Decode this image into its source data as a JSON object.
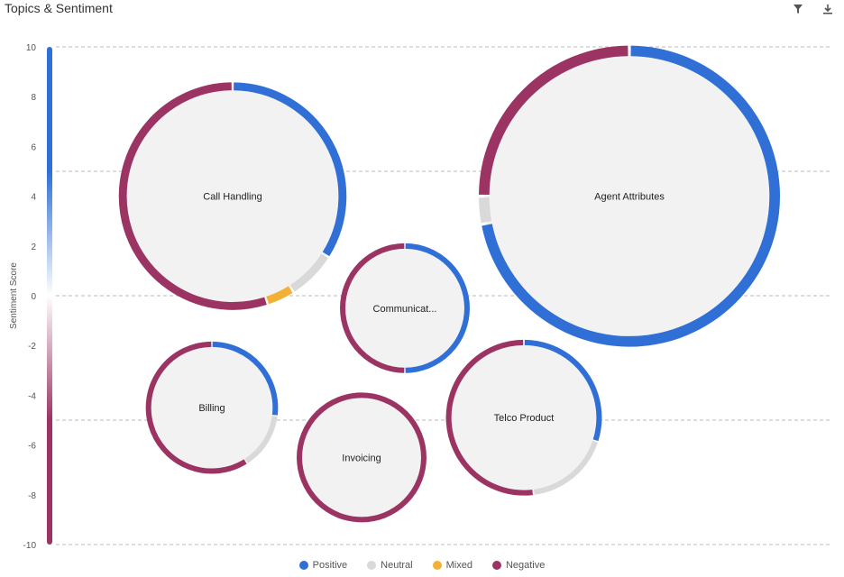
{
  "header": {
    "title": "Topics & Sentiment",
    "filter_icon": "filter-icon",
    "download_icon": "download-icon"
  },
  "colors": {
    "Positive": "#2f6fd6",
    "Neutral": "#d9d9d9",
    "Mixed": "#f2b134",
    "Negative": "#9b3463",
    "bubble_fill": "#f2f2f2",
    "grid": "#bbbbbb"
  },
  "chart_data": {
    "type": "bubble-donut",
    "title": "",
    "xlabel": "",
    "ylabel": "Sentiment Score",
    "ylim": [
      -10,
      10
    ],
    "yticks": [
      "10",
      "8",
      "6",
      "4",
      "2",
      "0",
      "-2",
      "-4",
      "-6",
      "-8",
      "-10"
    ],
    "gridlines": [
      10,
      5,
      0,
      -5,
      -10
    ],
    "legend": [
      "Positive",
      "Neutral",
      "Mixed",
      "Negative"
    ],
    "legend_position": "bottom",
    "topics": [
      {
        "label": "Call Handling",
        "sentiment": 4,
        "size": 16,
        "positive": 34,
        "neutral": 7,
        "mixed": 4,
        "negative": 55
      },
      {
        "label": "Agent Attributes",
        "sentiment": 4,
        "size": 28,
        "positive": 72,
        "neutral": 3,
        "mixed": 0,
        "negative": 25
      },
      {
        "label": "Communicat...",
        "sentiment": -0.5,
        "size": 5.2,
        "positive": 50,
        "neutral": 0,
        "mixed": 0,
        "negative": 50
      },
      {
        "label": "Billing",
        "sentiment": -4.5,
        "size": 5.4,
        "positive": 27,
        "neutral": 14,
        "mixed": 0,
        "negative": 59
      },
      {
        "label": "Invoicing",
        "sentiment": -6.5,
        "size": 5.2,
        "positive": 0,
        "neutral": 0,
        "mixed": 0,
        "negative": 100
      },
      {
        "label": "Telco Product",
        "sentiment": -4.9,
        "size": 7.5,
        "positive": 30,
        "neutral": 18,
        "mixed": 0,
        "negative": 52
      }
    ]
  }
}
